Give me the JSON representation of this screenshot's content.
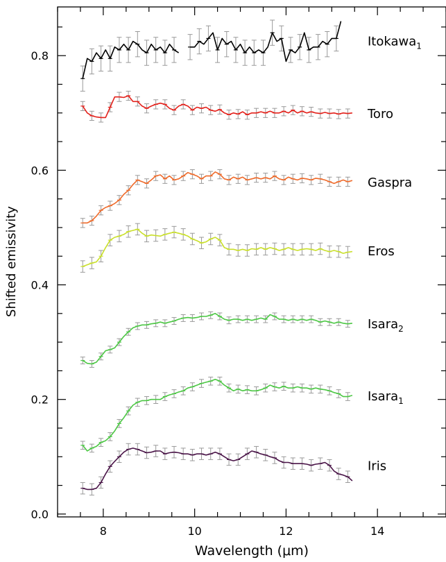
{
  "chart_data": {
    "type": "line",
    "title": "",
    "xlabel": "Wavelength (μm)",
    "ylabel": "Shifted emissivity",
    "xlim": [
      7.0,
      15.5
    ],
    "ylim": [
      -0.005,
      0.885
    ],
    "x_ticks": [
      8,
      10,
      12,
      14
    ],
    "x_tick_labels": [
      "8",
      "10",
      "12",
      "14"
    ],
    "y_ticks": [
      0.0,
      0.2,
      0.4,
      0.6,
      0.8
    ],
    "y_tick_labels": [
      "0.0",
      "0.2",
      "0.4",
      "0.6",
      "0.8"
    ],
    "x_minor_step": 0.5,
    "y_minor_step": 0.05,
    "grid": false,
    "legend": "none (series labeled at right of each curve)",
    "error_bar_color": "#999999",
    "series": [
      {
        "name": "Itokawa",
        "subscript": "1",
        "color": "#000000",
        "label_y": 0.826,
        "segments": [
          {
            "x": [
              7.55,
              7.65,
              7.75,
              7.85,
              7.95,
              8.05,
              8.15,
              8.25,
              8.35,
              8.45,
              8.55,
              8.65,
              8.75,
              8.85,
              8.95,
              9.05,
              9.15,
              9.25,
              9.35,
              9.45,
              9.55,
              9.65
            ],
            "y": [
              0.76,
              0.795,
              0.79,
              0.805,
              0.795,
              0.81,
              0.795,
              0.815,
              0.81,
              0.82,
              0.81,
              0.825,
              0.82,
              0.81,
              0.805,
              0.82,
              0.81,
              0.815,
              0.805,
              0.82,
              0.81,
              0.805
            ]
          },
          {
            "x": [
              9.9,
              10.0,
              10.1,
              10.2,
              10.3,
              10.4,
              10.5,
              10.6,
              10.7,
              10.8,
              10.9,
              11.0,
              11.1,
              11.2,
              11.3,
              11.4,
              11.5,
              11.6,
              11.7,
              11.8,
              11.9,
              12.0,
              12.1,
              12.2,
              12.3,
              12.4,
              12.5,
              12.6,
              12.7,
              12.8,
              12.9,
              13.0,
              13.1,
              13.2
            ],
            "y": [
              0.815,
              0.815,
              0.825,
              0.82,
              0.83,
              0.84,
              0.81,
              0.83,
              0.82,
              0.825,
              0.81,
              0.82,
              0.805,
              0.815,
              0.805,
              0.81,
              0.805,
              0.815,
              0.84,
              0.825,
              0.83,
              0.79,
              0.81,
              0.805,
              0.815,
              0.84,
              0.81,
              0.815,
              0.815,
              0.825,
              0.82,
              0.83,
              0.83,
              0.86
            ]
          }
        ],
        "err": 0.022
      },
      {
        "name": "Toro",
        "subscript": "",
        "color": "#e3211b",
        "label_y": 0.7,
        "segments": [
          {
            "x": [
              7.55,
              7.65,
              7.75,
              7.85,
              7.95,
              8.05,
              8.15,
              8.25,
              8.35,
              8.45,
              8.55,
              8.65,
              8.75,
              8.85,
              8.95,
              9.05,
              9.15,
              9.25,
              9.35,
              9.45,
              9.55,
              9.65,
              9.75,
              9.85,
              9.95,
              10.05,
              10.15,
              10.25,
              10.35,
              10.45,
              10.55,
              10.65,
              10.75,
              10.85,
              10.95,
              11.05,
              11.15,
              11.25,
              11.35,
              11.45,
              11.55,
              11.65,
              11.75,
              11.85,
              11.95,
              12.05,
              12.15,
              12.25,
              12.35,
              12.45,
              12.55,
              12.65,
              12.75,
              12.85,
              12.95,
              13.05,
              13.15,
              13.25,
              13.35,
              13.45
            ],
            "y": [
              0.712,
              0.7,
              0.695,
              0.693,
              0.692,
              0.692,
              0.71,
              0.728,
              0.728,
              0.727,
              0.73,
              0.72,
              0.72,
              0.712,
              0.708,
              0.712,
              0.715,
              0.717,
              0.715,
              0.708,
              0.705,
              0.712,
              0.715,
              0.712,
              0.705,
              0.71,
              0.708,
              0.71,
              0.705,
              0.703,
              0.706,
              0.7,
              0.697,
              0.7,
              0.698,
              0.702,
              0.697,
              0.7,
              0.7,
              0.702,
              0.7,
              0.703,
              0.7,
              0.7,
              0.703,
              0.7,
              0.705,
              0.7,
              0.703,
              0.7,
              0.702,
              0.7,
              0.699,
              0.701,
              0.699,
              0.7,
              0.698,
              0.7,
              0.699,
              0.7
            ]
          }
        ],
        "err": 0.008
      },
      {
        "name": "Gaspra",
        "subscript": "",
        "color": "#ee6a2a",
        "label_y": 0.58,
        "segments": [
          {
            "x": [
              7.55,
              7.65,
              7.75,
              7.85,
              7.95,
              8.05,
              8.15,
              8.25,
              8.35,
              8.45,
              8.55,
              8.65,
              8.75,
              8.85,
              8.95,
              9.05,
              9.15,
              9.25,
              9.35,
              9.45,
              9.55,
              9.65,
              9.75,
              9.85,
              9.95,
              10.05,
              10.15,
              10.25,
              10.35,
              10.45,
              10.55,
              10.65,
              10.75,
              10.85,
              10.95,
              11.05,
              11.15,
              11.25,
              11.35,
              11.45,
              11.55,
              11.65,
              11.75,
              11.85,
              11.95,
              12.05,
              12.15,
              12.25,
              12.35,
              12.45,
              12.55,
              12.65,
              12.75,
              12.85,
              12.95,
              13.05,
              13.15,
              13.25,
              13.35,
              13.45
            ],
            "y": [
              0.508,
              0.508,
              0.512,
              0.52,
              0.53,
              0.535,
              0.538,
              0.542,
              0.548,
              0.558,
              0.565,
              0.575,
              0.583,
              0.58,
              0.577,
              0.583,
              0.59,
              0.592,
              0.585,
              0.59,
              0.583,
              0.585,
              0.59,
              0.596,
              0.593,
              0.59,
              0.585,
              0.59,
              0.59,
              0.597,
              0.593,
              0.585,
              0.583,
              0.588,
              0.585,
              0.588,
              0.583,
              0.585,
              0.587,
              0.585,
              0.587,
              0.585,
              0.59,
              0.585,
              0.583,
              0.588,
              0.585,
              0.583,
              0.586,
              0.585,
              0.583,
              0.586,
              0.585,
              0.583,
              0.58,
              0.577,
              0.58,
              0.583,
              0.58,
              0.582
            ]
          }
        ],
        "err": 0.008
      },
      {
        "name": "Eros",
        "subscript": "",
        "color": "#c9df2a",
        "label_y": 0.46,
        "segments": [
          {
            "x": [
              7.55,
              7.65,
              7.75,
              7.85,
              7.95,
              8.05,
              8.15,
              8.25,
              8.35,
              8.45,
              8.55,
              8.65,
              8.75,
              8.85,
              8.95,
              9.05,
              9.15,
              9.25,
              9.35,
              9.45,
              9.55,
              9.65,
              9.75,
              9.85,
              9.95,
              10.05,
              10.15,
              10.25,
              10.35,
              10.45,
              10.55,
              10.65,
              10.75,
              10.85,
              10.95,
              11.05,
              11.15,
              11.25,
              11.35,
              11.45,
              11.55,
              11.65,
              11.75,
              11.85,
              11.95,
              12.05,
              12.15,
              12.25,
              12.35,
              12.45,
              12.55,
              12.65,
              12.75,
              12.85,
              12.95,
              13.05,
              13.15,
              13.25,
              13.35,
              13.45
            ],
            "y": [
              0.432,
              0.435,
              0.438,
              0.44,
              0.45,
              0.465,
              0.478,
              0.483,
              0.485,
              0.488,
              0.493,
              0.495,
              0.497,
              0.49,
              0.485,
              0.487,
              0.486,
              0.485,
              0.488,
              0.49,
              0.492,
              0.49,
              0.488,
              0.485,
              0.48,
              0.477,
              0.473,
              0.475,
              0.48,
              0.483,
              0.478,
              0.465,
              0.462,
              0.462,
              0.46,
              0.462,
              0.46,
              0.463,
              0.462,
              0.465,
              0.462,
              0.465,
              0.463,
              0.46,
              0.462,
              0.465,
              0.462,
              0.46,
              0.462,
              0.463,
              0.462,
              0.46,
              0.463,
              0.46,
              0.458,
              0.46,
              0.458,
              0.455,
              0.457,
              0.458
            ]
          }
        ],
        "err": 0.01
      },
      {
        "name": "Isara",
        "subscript": "2",
        "color": "#4cc744",
        "label_y": 0.333,
        "segments": [
          {
            "x": [
              7.55,
              7.65,
              7.75,
              7.85,
              7.95,
              8.05,
              8.15,
              8.25,
              8.35,
              8.45,
              8.55,
              8.65,
              8.75,
              8.85,
              8.95,
              9.05,
              9.15,
              9.25,
              9.35,
              9.45,
              9.55,
              9.65,
              9.75,
              9.85,
              9.95,
              10.05,
              10.15,
              10.25,
              10.35,
              10.45,
              10.55,
              10.65,
              10.75,
              10.85,
              10.95,
              11.05,
              11.15,
              11.25,
              11.35,
              11.45,
              11.55,
              11.65,
              11.75,
              11.85,
              11.95,
              12.05,
              12.15,
              12.25,
              12.35,
              12.45,
              12.55,
              12.65,
              12.75,
              12.85,
              12.95,
              13.05,
              13.15,
              13.25,
              13.35,
              13.45
            ],
            "y": [
              0.268,
              0.263,
              0.262,
              0.265,
              0.275,
              0.285,
              0.287,
              0.29,
              0.3,
              0.31,
              0.318,
              0.325,
              0.328,
              0.33,
              0.33,
              0.332,
              0.333,
              0.335,
              0.333,
              0.335,
              0.337,
              0.34,
              0.342,
              0.343,
              0.342,
              0.343,
              0.345,
              0.345,
              0.347,
              0.35,
              0.345,
              0.34,
              0.338,
              0.34,
              0.34,
              0.338,
              0.34,
              0.338,
              0.34,
              0.342,
              0.34,
              0.348,
              0.345,
              0.34,
              0.34,
              0.338,
              0.34,
              0.338,
              0.34,
              0.338,
              0.34,
              0.338,
              0.335,
              0.337,
              0.335,
              0.333,
              0.335,
              0.333,
              0.332,
              0.333
            ]
          }
        ],
        "err": 0.006
      },
      {
        "name": "Isara",
        "subscript": "1",
        "color": "#4cc744",
        "label_y": 0.207,
        "segments": [
          {
            "x": [
              7.55,
              7.65,
              7.75,
              7.85,
              7.95,
              8.05,
              8.15,
              8.25,
              8.35,
              8.45,
              8.55,
              8.65,
              8.75,
              8.85,
              8.95,
              9.05,
              9.15,
              9.25,
              9.35,
              9.45,
              9.55,
              9.65,
              9.75,
              9.85,
              9.95,
              10.05,
              10.15,
              10.25,
              10.35,
              10.45,
              10.55,
              10.65,
              10.75,
              10.85,
              10.95,
              11.05,
              11.15,
              11.25,
              11.35,
              11.45,
              11.55,
              11.65,
              11.75,
              11.85,
              11.95,
              12.05,
              12.15,
              12.25,
              12.35,
              12.45,
              12.55,
              12.65,
              12.75,
              12.85,
              12.95,
              13.05,
              13.15,
              13.25,
              13.35,
              13.45
            ],
            "y": [
              0.12,
              0.11,
              0.115,
              0.118,
              0.125,
              0.128,
              0.135,
              0.145,
              0.158,
              0.168,
              0.18,
              0.19,
              0.195,
              0.198,
              0.198,
              0.2,
              0.2,
              0.2,
              0.205,
              0.208,
              0.21,
              0.213,
              0.215,
              0.22,
              0.222,
              0.225,
              0.228,
              0.23,
              0.232,
              0.235,
              0.232,
              0.225,
              0.22,
              0.215,
              0.218,
              0.215,
              0.217,
              0.215,
              0.215,
              0.217,
              0.22,
              0.225,
              0.222,
              0.22,
              0.223,
              0.22,
              0.22,
              0.222,
              0.22,
              0.22,
              0.218,
              0.22,
              0.218,
              0.217,
              0.215,
              0.212,
              0.21,
              0.205,
              0.205,
              0.207
            ]
          }
        ],
        "err": 0.007
      },
      {
        "name": "Iris",
        "subscript": "",
        "color": "#4a1548",
        "label_y": 0.085,
        "segments": [
          {
            "x": [
              7.55,
              7.65,
              7.75,
              7.85,
              7.95,
              8.05,
              8.15,
              8.25,
              8.35,
              8.45,
              8.55,
              8.65,
              8.75,
              8.85,
              8.95,
              9.05,
              9.15,
              9.25,
              9.35,
              9.45,
              9.55,
              9.65,
              9.75,
              9.85,
              9.95,
              10.05,
              10.15,
              10.25,
              10.35,
              10.45,
              10.55,
              10.65,
              10.75,
              10.85,
              10.95,
              11.05,
              11.15,
              11.25,
              11.35,
              11.45,
              11.55,
              11.65,
              11.75,
              11.85,
              11.95,
              12.05,
              12.15,
              12.25,
              12.35,
              12.45,
              12.55,
              12.65,
              12.75,
              12.85,
              12.95,
              13.05,
              13.15,
              13.25,
              13.35,
              13.45
            ],
            "y": [
              0.045,
              0.043,
              0.043,
              0.045,
              0.055,
              0.07,
              0.083,
              0.092,
              0.1,
              0.108,
              0.113,
              0.115,
              0.113,
              0.11,
              0.107,
              0.108,
              0.11,
              0.11,
              0.105,
              0.107,
              0.108,
              0.107,
              0.105,
              0.105,
              0.103,
              0.105,
              0.105,
              0.103,
              0.105,
              0.108,
              0.105,
              0.1,
              0.095,
              0.093,
              0.095,
              0.1,
              0.105,
              0.11,
              0.108,
              0.105,
              0.103,
              0.1,
              0.098,
              0.093,
              0.09,
              0.09,
              0.088,
              0.088,
              0.088,
              0.087,
              0.085,
              0.087,
              0.088,
              0.09,
              0.085,
              0.075,
              0.07,
              0.068,
              0.065,
              0.058
            ]
          }
        ],
        "err": 0.01
      }
    ]
  }
}
